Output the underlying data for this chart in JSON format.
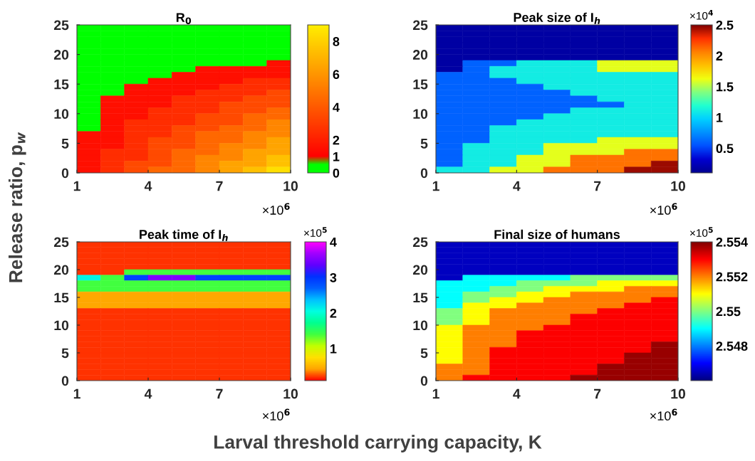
{
  "chart_data": [
    {
      "type": "heatmap",
      "title": "R$_{0}$",
      "ylabel": "Release ratio, p$_{w}$",
      "x": [
        1.5,
        2.5,
        3.5,
        4.5,
        5.5,
        6.5,
        7.5,
        8.5,
        9.5
      ],
      "y": [
        24.5,
        23.5,
        22.5,
        21.5,
        20.5,
        19.5,
        18.5,
        17.5,
        16.5,
        15.5,
        14.5,
        13.5,
        12.5,
        11.5,
        10.5,
        9.5,
        8.5,
        7.5,
        6.5,
        5.5,
        4.5,
        3.5,
        2.5,
        1.5,
        0.5
      ],
      "cells": [
        [
          0.5,
          0.5,
          0.5,
          0.5,
          0.5,
          0.5,
          0.5,
          0.5,
          0.5
        ],
        [
          0.5,
          0.5,
          0.5,
          0.5,
          0.5,
          0.5,
          0.5,
          0.5,
          0.5
        ],
        [
          0.5,
          0.5,
          0.5,
          0.5,
          0.5,
          0.5,
          0.5,
          0.5,
          0.5
        ],
        [
          0.5,
          0.5,
          0.5,
          0.5,
          0.5,
          0.5,
          0.5,
          0.5,
          0.5
        ],
        [
          0.5,
          0.5,
          0.5,
          0.5,
          0.5,
          0.5,
          0.5,
          0.5,
          0.5
        ],
        [
          0.5,
          0.5,
          0.5,
          0.5,
          0.5,
          0.5,
          0.5,
          0.5,
          0.5
        ],
        [
          0.5,
          0.5,
          0.5,
          0.5,
          0.5,
          0.5,
          0.5,
          0.5,
          1.5
        ],
        [
          0.5,
          0.5,
          0.5,
          0.5,
          0.5,
          1.5,
          1.5,
          1.5,
          1.5
        ],
        [
          0.5,
          0.5,
          0.5,
          0.5,
          1.5,
          1.5,
          1.5,
          1.5,
          1.5
        ],
        [
          0.5,
          0.5,
          0.5,
          1.5,
          1.5,
          1.5,
          1.5,
          2.5,
          2.5
        ],
        [
          0.5,
          0.5,
          1.5,
          1.5,
          1.5,
          1.5,
          2.5,
          2.5,
          2.5
        ],
        [
          0.5,
          0.5,
          1.5,
          1.5,
          1.5,
          2.5,
          2.5,
          2.5,
          3.5
        ],
        [
          0.5,
          1.5,
          1.5,
          1.5,
          2.5,
          2.5,
          2.5,
          3.5,
          3.5
        ],
        [
          0.5,
          1.5,
          1.5,
          1.5,
          2.5,
          2.5,
          3.5,
          3.5,
          3.5
        ],
        [
          0.5,
          1.5,
          1.5,
          2.5,
          2.5,
          2.5,
          3.5,
          3.5,
          4.5
        ],
        [
          0.5,
          1.5,
          1.5,
          2.5,
          2.5,
          3.5,
          3.5,
          4.5,
          4.5
        ],
        [
          0.5,
          1.5,
          2.5,
          2.5,
          2.5,
          3.5,
          3.5,
          4.5,
          5.5
        ],
        [
          0.5,
          1.5,
          2.5,
          2.5,
          3.5,
          3.5,
          4.5,
          4.5,
          5.5
        ],
        [
          1.5,
          1.5,
          2.5,
          2.5,
          3.5,
          4.5,
          4.5,
          5.5,
          5.5
        ],
        [
          1.5,
          1.5,
          2.5,
          3.5,
          3.5,
          4.5,
          4.5,
          5.5,
          6.5
        ],
        [
          1.5,
          1.5,
          2.5,
          3.5,
          3.5,
          4.5,
          5.5,
          5.5,
          6.5
        ],
        [
          1.5,
          2.5,
          2.5,
          3.5,
          4.5,
          4.5,
          5.5,
          6.5,
          6.5
        ],
        [
          1.5,
          2.5,
          2.5,
          3.5,
          4.5,
          5.5,
          5.5,
          6.5,
          7.5
        ],
        [
          1.5,
          2.5,
          3.5,
          3.5,
          4.5,
          5.5,
          6.5,
          6.5,
          7.5
        ],
        [
          1.5,
          2.5,
          3.5,
          4.5,
          4.5,
          5.5,
          6.5,
          7.5,
          8.5
        ]
      ],
      "colors": [
        "#00ff00",
        "#00ff00",
        "#ff0000",
        "#ff0f00",
        "#ff1e00",
        "#ff2d00",
        "#ff3c00",
        "#ff4a00",
        "#ff5900",
        "#ff6800",
        "#ff7700",
        "#ff8600",
        "#ff9500",
        "#ffa400",
        "#ffb300",
        "#ffc100",
        "#ffd000",
        "#ffdf00",
        "#ffee00"
      ],
      "clim": [
        0,
        9
      ],
      "cticks": [
        0,
        1,
        2,
        4,
        6,
        8
      ],
      "xlim": [
        1,
        10
      ],
      "xticks": [
        1,
        4,
        7,
        10
      ],
      "ylim": [
        0,
        25
      ],
      "yticks": [
        0,
        5,
        10,
        15,
        20,
        25
      ],
      "annotations": [
        "×10$^{6}$"
      ]
    },
    {
      "type": "heatmap",
      "title": "Peak size of I$_{h}$",
      "x": [
        1.5,
        2.5,
        3.5,
        4.5,
        5.5,
        6.5,
        7.5,
        8.5,
        9.5
      ],
      "y": [
        24.5,
        23.5,
        22.5,
        21.5,
        20.5,
        19.5,
        18.5,
        17.5,
        16.5,
        15.5,
        14.5,
        13.5,
        12.5,
        11.5,
        10.5,
        9.5,
        8.5,
        7.5,
        6.5,
        5.5,
        4.5,
        3.5,
        2.5,
        1.5,
        0.5
      ],
      "cells": [
        [
          0.17,
          0.17,
          0.17,
          0.17,
          0.17,
          0.17,
          0.17,
          0.17,
          0.17
        ],
        [
          0.17,
          0.17,
          0.17,
          0.17,
          0.17,
          0.17,
          0.17,
          0.17,
          0.17
        ],
        [
          0.17,
          0.17,
          0.17,
          0.17,
          0.17,
          0.17,
          0.17,
          0.17,
          0.17
        ],
        [
          0.17,
          0.17,
          0.17,
          0.17,
          0.17,
          0.17,
          0.17,
          0.17,
          0.17
        ],
        [
          0.17,
          0.17,
          0.17,
          0.17,
          0.17,
          0.17,
          0.17,
          0.17,
          0.17
        ],
        [
          0.17,
          0.17,
          0.17,
          0.17,
          0.17,
          0.17,
          0.17,
          0.17,
          0.17
        ],
        [
          0.17,
          0.6,
          0.6,
          1.1,
          1.1,
          1.1,
          1.6,
          1.6,
          1.6
        ],
        [
          0.17,
          0.6,
          1.1,
          1.1,
          1.1,
          1.1,
          1.6,
          1.6,
          1.6
        ],
        [
          0.6,
          0.6,
          1.1,
          1.1,
          1.1,
          1.1,
          1.1,
          1.1,
          1.1
        ],
        [
          0.6,
          0.6,
          0.6,
          1.1,
          1.1,
          1.1,
          1.1,
          1.1,
          1.1
        ],
        [
          0.6,
          0.6,
          0.6,
          0.6,
          1.1,
          1.1,
          1.1,
          1.1,
          1.1
        ],
        [
          0.6,
          0.6,
          0.6,
          0.6,
          0.6,
          1.1,
          1.1,
          1.1,
          1.1
        ],
        [
          0.6,
          0.6,
          0.6,
          0.6,
          0.6,
          0.6,
          1.1,
          1.1,
          1.1
        ],
        [
          0.6,
          0.6,
          0.6,
          0.6,
          0.6,
          0.6,
          0.6,
          1.1,
          1.1
        ],
        [
          0.6,
          0.6,
          0.6,
          0.6,
          0.6,
          1.1,
          1.1,
          1.1,
          1.1
        ],
        [
          0.6,
          0.6,
          0.6,
          0.6,
          1.1,
          1.1,
          1.1,
          1.1,
          1.1
        ],
        [
          0.6,
          0.6,
          0.6,
          1.1,
          1.1,
          1.1,
          1.1,
          1.1,
          1.1
        ],
        [
          0.6,
          0.6,
          1.1,
          1.1,
          1.1,
          1.1,
          1.1,
          1.1,
          1.1
        ],
        [
          0.6,
          0.6,
          1.1,
          1.1,
          1.1,
          1.1,
          1.1,
          1.1,
          1.1
        ],
        [
          0.6,
          0.6,
          1.1,
          1.1,
          1.1,
          1.1,
          1.6,
          1.6,
          1.6
        ],
        [
          0.6,
          1.1,
          1.1,
          1.1,
          1.6,
          1.6,
          1.6,
          1.6,
          1.6
        ],
        [
          0.6,
          1.1,
          1.1,
          1.1,
          1.6,
          1.6,
          1.6,
          2.1,
          2.1
        ],
        [
          0.6,
          1.1,
          1.1,
          1.6,
          1.6,
          2.1,
          2.1,
          2.1,
          2.1
        ],
        [
          0.6,
          1.1,
          1.1,
          1.6,
          1.6,
          2.1,
          2.1,
          2.1,
          2.45
        ],
        [
          1.1,
          1.1,
          1.6,
          1.6,
          2.1,
          2.1,
          2.1,
          2.45,
          2.45
        ]
      ],
      "colors": [
        "#000090",
        "#0000d0",
        "#0050ff",
        "#0090ff",
        "#00d0ff",
        "#20ffd0",
        "#80ff80",
        "#f0ff10",
        "#ffc000",
        "#ff8000",
        "#ff3000",
        "#800000"
      ],
      "clim": [
        0.1,
        2.5
      ],
      "cticks": [
        0.5,
        1,
        1.5,
        2,
        2.5
      ],
      "xlim": [
        1,
        10
      ],
      "xticks": [
        1,
        4,
        7,
        10
      ],
      "ylim": [
        0,
        25
      ],
      "yticks": [
        0,
        5,
        10,
        15,
        20,
        25
      ],
      "annotations": [
        "×10$^{6}$",
        "×10$^{4}$"
      ]
    },
    {
      "type": "heatmap",
      "title": "Peak time of I$_{h}$",
      "xlabel": "Larval threshold carrying capacity, K",
      "x": [
        1.5,
        2.5,
        3.5,
        4.5,
        5.5,
        6.5,
        7.5,
        8.5,
        9.5
      ],
      "y": [
        24.5,
        23.5,
        22.5,
        21.5,
        20.5,
        19.5,
        18.5,
        17.5,
        16.5,
        15.5,
        14.5,
        13.5,
        12.5,
        11.5,
        10.5,
        9.5,
        8.5,
        7.5,
        6.5,
        5.5,
        4.5,
        3.5,
        2.5,
        1.5,
        0.5
      ],
      "cells": [
        [
          0.2,
          0.2,
          0.2,
          0.2,
          0.2,
          0.2,
          0.2,
          0.2,
          0.2
        ],
        [
          0.2,
          0.2,
          0.2,
          0.2,
          0.2,
          0.2,
          0.2,
          0.2,
          0.2
        ],
        [
          0.2,
          0.2,
          0.2,
          0.2,
          0.2,
          0.2,
          0.2,
          0.2,
          0.2
        ],
        [
          0.2,
          0.2,
          0.2,
          0.2,
          0.2,
          0.2,
          0.2,
          0.2,
          0.2
        ],
        [
          0.2,
          0.2,
          0.2,
          0.2,
          0.2,
          0.2,
          0.2,
          0.2,
          0.2
        ],
        [
          0.2,
          0.2,
          1.4,
          1.4,
          1.4,
          1.4,
          1.4,
          1.4,
          1.4
        ],
        [
          2.1,
          1.4,
          2.9,
          3.5,
          3.5,
          2.9,
          2.9,
          2.9,
          2.9
        ],
        [
          1.4,
          1.4,
          1.4,
          1.4,
          1.4,
          1.4,
          1.4,
          1.4,
          1.4
        ],
        [
          1.4,
          1.4,
          1.4,
          1.4,
          1.4,
          1.4,
          1.4,
          1.4,
          1.4
        ],
        [
          0.45,
          0.45,
          0.45,
          0.45,
          0.45,
          0.45,
          0.45,
          0.45,
          0.45
        ],
        [
          0.45,
          0.45,
          0.45,
          0.45,
          0.45,
          0.45,
          0.45,
          0.45,
          0.45
        ],
        [
          0.45,
          0.45,
          0.45,
          0.45,
          0.45,
          0.45,
          0.45,
          0.45,
          0.45
        ],
        [
          0.2,
          0.2,
          0.2,
          0.2,
          0.2,
          0.2,
          0.2,
          0.2,
          0.2
        ],
        [
          0.2,
          0.2,
          0.2,
          0.2,
          0.2,
          0.2,
          0.2,
          0.2,
          0.2
        ],
        [
          0.2,
          0.2,
          0.2,
          0.2,
          0.2,
          0.2,
          0.2,
          0.2,
          0.2
        ],
        [
          0.2,
          0.2,
          0.2,
          0.2,
          0.2,
          0.2,
          0.2,
          0.2,
          0.2
        ],
        [
          0.2,
          0.2,
          0.2,
          0.2,
          0.2,
          0.2,
          0.2,
          0.2,
          0.2
        ],
        [
          0.2,
          0.2,
          0.2,
          0.2,
          0.2,
          0.2,
          0.2,
          0.2,
          0.2
        ],
        [
          0.2,
          0.2,
          0.2,
          0.2,
          0.2,
          0.2,
          0.2,
          0.2,
          0.2
        ],
        [
          0.2,
          0.2,
          0.2,
          0.2,
          0.2,
          0.2,
          0.2,
          0.2,
          0.2
        ],
        [
          0.2,
          0.2,
          0.2,
          0.2,
          0.2,
          0.2,
          0.2,
          0.2,
          0.2
        ],
        [
          0.2,
          0.2,
          0.2,
          0.2,
          0.2,
          0.2,
          0.2,
          0.2,
          0.2
        ],
        [
          0.2,
          0.2,
          0.2,
          0.2,
          0.2,
          0.2,
          0.2,
          0.2,
          0.2
        ],
        [
          0.2,
          0.2,
          0.2,
          0.2,
          0.2,
          0.2,
          0.2,
          0.2,
          0.2
        ],
        [
          0.2,
          0.2,
          0.2,
          0.2,
          0.2,
          0.2,
          0.2,
          0.2,
          0.2
        ]
      ],
      "colors": [
        "#ff0000",
        "#ffa500",
        "#ffe000",
        "#c0ff00",
        "#40ff40",
        "#00ff90",
        "#00ffe0",
        "#00c0ff",
        "#0060ff",
        "#0030ff",
        "#6000ff",
        "#a000ff",
        "#ff00ff"
      ],
      "clim": [
        0.1,
        4
      ],
      "cticks": [
        1,
        2,
        3,
        4
      ],
      "xlim": [
        1,
        10
      ],
      "xticks": [
        1,
        4,
        7,
        10
      ],
      "ylim": [
        0,
        25
      ],
      "yticks": [
        0,
        5,
        10,
        15,
        20,
        25
      ],
      "annotations": [
        "×10$^{6}$",
        "×10$^{5}$"
      ]
    },
    {
      "type": "heatmap",
      "title": "Final size of humans",
      "x": [
        1.5,
        2.5,
        3.5,
        4.5,
        5.5,
        6.5,
        7.5,
        8.5,
        9.5
      ],
      "y": [
        24.5,
        23.5,
        22.5,
        21.5,
        20.5,
        19.5,
        18.5,
        17.5,
        16.5,
        15.5,
        14.5,
        13.5,
        12.5,
        11.5,
        10.5,
        9.5,
        8.5,
        7.5,
        6.5,
        5.5,
        4.5,
        3.5,
        2.5,
        1.5,
        0.5
      ],
      "cells": [
        [
          2.5465,
          2.5465,
          2.5465,
          2.5465,
          2.5465,
          2.5465,
          2.5465,
          2.5465,
          2.5465
        ],
        [
          2.5465,
          2.5465,
          2.5465,
          2.5465,
          2.5465,
          2.5465,
          2.5465,
          2.5465,
          2.5465
        ],
        [
          2.5465,
          2.5465,
          2.5465,
          2.5465,
          2.5465,
          2.5465,
          2.5465,
          2.5465,
          2.5465
        ],
        [
          2.5465,
          2.5465,
          2.5465,
          2.5465,
          2.5465,
          2.5465,
          2.5465,
          2.5465,
          2.5465
        ],
        [
          2.5465,
          2.5465,
          2.5465,
          2.5465,
          2.5465,
          2.5465,
          2.5465,
          2.5465,
          2.5465
        ],
        [
          2.5465,
          2.5465,
          2.5465,
          2.5465,
          2.5465,
          2.5465,
          2.5465,
          2.5465,
          2.5465
        ],
        [
          2.5465,
          2.549,
          2.549,
          2.549,
          2.549,
          2.55,
          2.55,
          2.55,
          2.55
        ],
        [
          2.549,
          2.549,
          2.549,
          2.55,
          2.55,
          2.55,
          2.551,
          2.551,
          2.551
        ],
        [
          2.549,
          2.549,
          2.55,
          2.55,
          2.551,
          2.551,
          2.551,
          2.552,
          2.552
        ],
        [
          2.549,
          2.55,
          2.55,
          2.551,
          2.551,
          2.552,
          2.552,
          2.552,
          2.552
        ],
        [
          2.549,
          2.55,
          2.551,
          2.551,
          2.552,
          2.552,
          2.552,
          2.552,
          2.553
        ],
        [
          2.549,
          2.551,
          2.551,
          2.552,
          2.552,
          2.552,
          2.552,
          2.553,
          2.553
        ],
        [
          2.55,
          2.551,
          2.552,
          2.552,
          2.552,
          2.552,
          2.553,
          2.553,
          2.553
        ],
        [
          2.55,
          2.551,
          2.552,
          2.552,
          2.552,
          2.553,
          2.553,
          2.553,
          2.553
        ],
        [
          2.55,
          2.551,
          2.552,
          2.552,
          2.552,
          2.553,
          2.553,
          2.553,
          2.553
        ],
        [
          2.551,
          2.552,
          2.552,
          2.552,
          2.553,
          2.553,
          2.553,
          2.553,
          2.553
        ],
        [
          2.551,
          2.552,
          2.552,
          2.553,
          2.553,
          2.553,
          2.553,
          2.553,
          2.553
        ],
        [
          2.551,
          2.552,
          2.552,
          2.553,
          2.553,
          2.553,
          2.553,
          2.553,
          2.553
        ],
        [
          2.551,
          2.552,
          2.552,
          2.553,
          2.553,
          2.553,
          2.553,
          2.553,
          2.5538
        ],
        [
          2.551,
          2.552,
          2.553,
          2.553,
          2.553,
          2.553,
          2.553,
          2.553,
          2.5538
        ],
        [
          2.551,
          2.552,
          2.553,
          2.553,
          2.553,
          2.553,
          2.553,
          2.5538,
          2.5538
        ],
        [
          2.551,
          2.552,
          2.553,
          2.553,
          2.553,
          2.553,
          2.553,
          2.5538,
          2.5538
        ],
        [
          2.552,
          2.552,
          2.553,
          2.553,
          2.553,
          2.553,
          2.5538,
          2.5538,
          2.5538
        ],
        [
          2.552,
          2.552,
          2.553,
          2.553,
          2.553,
          2.553,
          2.5538,
          2.5538,
          2.5538
        ],
        [
          2.552,
          2.553,
          2.553,
          2.553,
          2.553,
          2.5538,
          2.5538,
          2.5538,
          2.5538
        ]
      ],
      "colors": [
        "#000080",
        "#0000ff",
        "#0080ff",
        "#00ffff",
        "#80ff80",
        "#ffff00",
        "#ff8000",
        "#ff0000",
        "#800000"
      ],
      "clim": [
        2.546,
        2.554
      ],
      "cticks": [
        2.548,
        2.55,
        2.552,
        2.554
      ],
      "xlim": [
        1,
        10
      ],
      "xticks": [
        1,
        4,
        7,
        10
      ],
      "ylim": [
        0,
        25
      ],
      "yticks": [
        0,
        5,
        10,
        15,
        20,
        25
      ],
      "annotations": [
        "×10$^{6}$",
        "×10$^{5}$"
      ]
    }
  ]
}
